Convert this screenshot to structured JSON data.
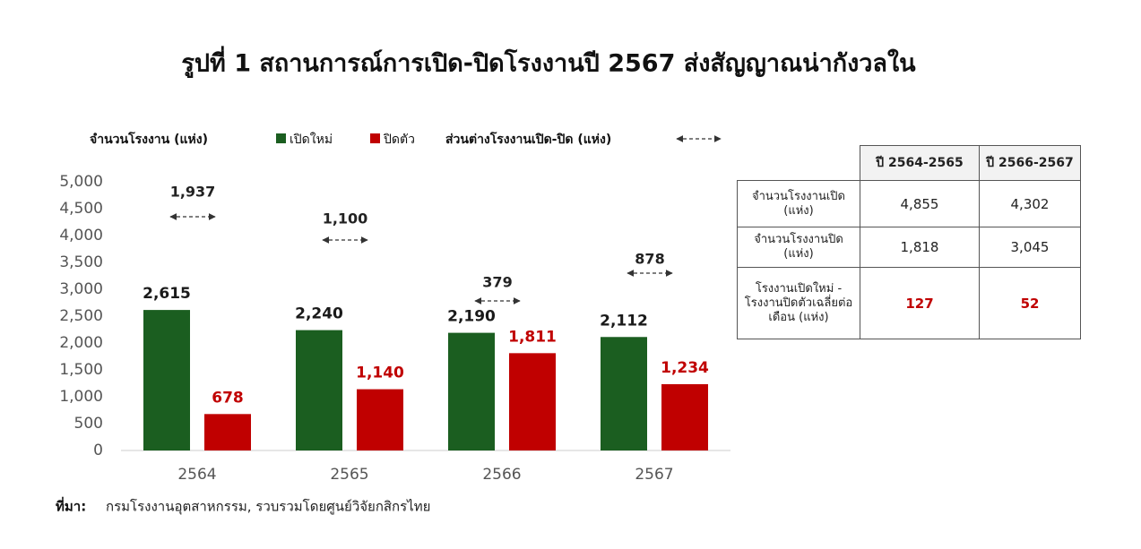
{
  "chart_data": {
    "type": "bar",
    "title": "รูปที่ 1 สถานการณ์การเปิด-ปิดโรงงานปี 2567 ส่งสัญญาณน่ากังวลใน",
    "y_label": "จำนวนโรงงาน (แห่ง)",
    "categories": [
      "2564",
      "2565",
      "2566",
      "2567"
    ],
    "series": [
      {
        "name": "เปิดใหม่",
        "color": "#1b5e20",
        "values": [
          2615,
          2240,
          2190,
          2112
        ],
        "value_labels": [
          "2,615",
          "2,240",
          "2,190",
          "2,112"
        ]
      },
      {
        "name": "ปิดตัว",
        "color": "#c00000",
        "values": [
          678,
          1140,
          1811,
          1234
        ],
        "value_labels": [
          "678",
          "1,140",
          "1,811",
          "1,234"
        ]
      }
    ],
    "difference": {
      "name": "ส่วนต่างโรงงานเปิด-ปิด (แห่ง)",
      "values": [
        1937,
        1100,
        379,
        878
      ],
      "value_labels": [
        "1,937",
        "1,100",
        "379",
        "878"
      ]
    },
    "ylim": [
      0,
      5000
    ],
    "yticks": [
      0,
      500,
      {
        "value": 1000,
        "label": "1,000"
      },
      {
        "value": 1500,
        "label": "1,500"
      },
      {
        "value": 2000,
        "label": "2,000"
      },
      {
        "value": 2500,
        "label": "2,500"
      },
      {
        "value": 3000,
        "label": "3,000"
      },
      {
        "value": 3500,
        "label": "3,500"
      },
      {
        "value": 4000,
        "label": "4,000"
      },
      {
        "value": 4500,
        "label": "4,500"
      },
      {
        "value": 5000,
        "label": "5,000"
      }
    ],
    "grid": false
  },
  "table": {
    "columns": [
      "ปี 2564-2565",
      "ปี 2566-2567"
    ],
    "rows": [
      {
        "label": "จำนวนโรงงานเปิด (แห่ง)",
        "values": [
          "4,855",
          "4,302"
        ]
      },
      {
        "label": "จำนวนโรงงานปิด (แห่ง)",
        "values": [
          "1,818",
          "3,045"
        ]
      },
      {
        "label": "โรงงานเปิดใหม่ - โรงงานปิดตัวเฉลี่ยต่อเดือน (แห่ง)",
        "values": [
          "127",
          "52"
        ]
      }
    ]
  },
  "source": {
    "label": "ที่มา:",
    "text": "กรมโรงงานอุตสาหกรรม, รวบรวมโดยศูนย์วิจัยกสิกรไทย"
  }
}
